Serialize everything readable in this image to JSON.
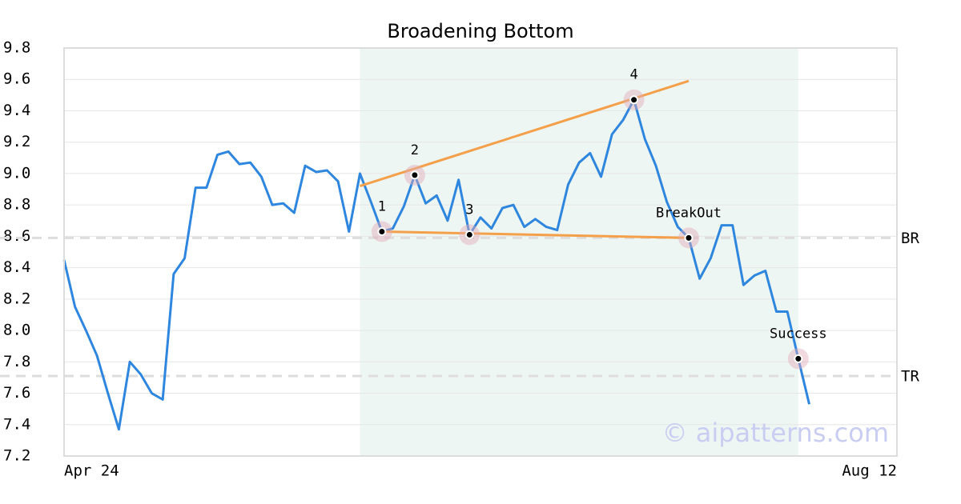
{
  "chart_data": {
    "type": "line",
    "title": "Broadening Bottom",
    "categories": [
      "Apr 24",
      null,
      null,
      null,
      null,
      null,
      null,
      null,
      null,
      null,
      null,
      null,
      null,
      null,
      null,
      null,
      null,
      null,
      null,
      null,
      null,
      null,
      null,
      null,
      null,
      null,
      null,
      null,
      null,
      null,
      null,
      null,
      null,
      null,
      null,
      null,
      null,
      null,
      null,
      null,
      null,
      null,
      null,
      null,
      null,
      null,
      null,
      null,
      null,
      null,
      null,
      null,
      null,
      null,
      null,
      null,
      null,
      null,
      null,
      null,
      null,
      null,
      null,
      null,
      null,
      null,
      null,
      null,
      null,
      null,
      null,
      null,
      null,
      null,
      null,
      null,
      "Aug 12"
    ],
    "series": [
      {
        "color": "#2e86de",
        "values": [
          8.45,
          8.15,
          8.0,
          7.84,
          7.6,
          7.37,
          7.8,
          7.72,
          7.6,
          7.56,
          8.36,
          8.46,
          8.91,
          8.91,
          9.12,
          9.14,
          9.06,
          9.07,
          8.98,
          8.8,
          8.81,
          8.75,
          9.05,
          9.01,
          9.02,
          8.95,
          8.63,
          9.0,
          8.82,
          8.63,
          8.65,
          8.79,
          8.99,
          8.81,
          8.86,
          8.7,
          8.96,
          8.61,
          8.72,
          8.65,
          8.78,
          8.8,
          8.66,
          8.71,
          8.66,
          8.64,
          8.93,
          9.07,
          9.13,
          8.98,
          9.25,
          9.34,
          9.47,
          9.22,
          9.05,
          8.82,
          8.66,
          8.59,
          8.33,
          8.46,
          8.67,
          8.67,
          8.29,
          8.35,
          8.38,
          8.12,
          8.12,
          7.82,
          7.53,
          null,
          null,
          null,
          null,
          null,
          null,
          null,
          null
        ]
      }
    ],
    "ylim": [
      7.2,
      9.8
    ],
    "yticks": [
      7.2,
      7.4,
      7.6,
      7.8,
      {
        "value": 8.0,
        "label": "8.0"
      },
      8.2,
      8.4,
      8.6,
      8.8,
      {
        "value": 9.0,
        "label": "9.0"
      },
      9.2,
      9.4,
      9.6,
      9.8
    ],
    "grid": true,
    "highlight": {
      "from": 27,
      "to": 67,
      "color": "#eef6f3"
    },
    "trend_lines": [
      {
        "color": "#f4a04a",
        "x": [
          27,
          57
        ],
        "values": [
          8.92,
          9.59
        ]
      },
      {
        "color": "#f4a04a",
        "x": [
          29,
          57
        ],
        "values": [
          8.63,
          8.59
        ]
      }
    ],
    "reference_lines": [
      {
        "label": "BR",
        "value": 8.59
      },
      {
        "label": "TR",
        "value": 7.71
      }
    ],
    "annotations": [
      {
        "index": 29,
        "label": "1"
      },
      {
        "index": 32,
        "label": "2"
      },
      {
        "index": 37,
        "label": "3"
      },
      {
        "index": 52,
        "label": "4"
      },
      {
        "index": 57,
        "label": "BreakOut"
      },
      {
        "index": 67,
        "label": "Success"
      }
    ],
    "watermark": "© aipatterns.com"
  }
}
